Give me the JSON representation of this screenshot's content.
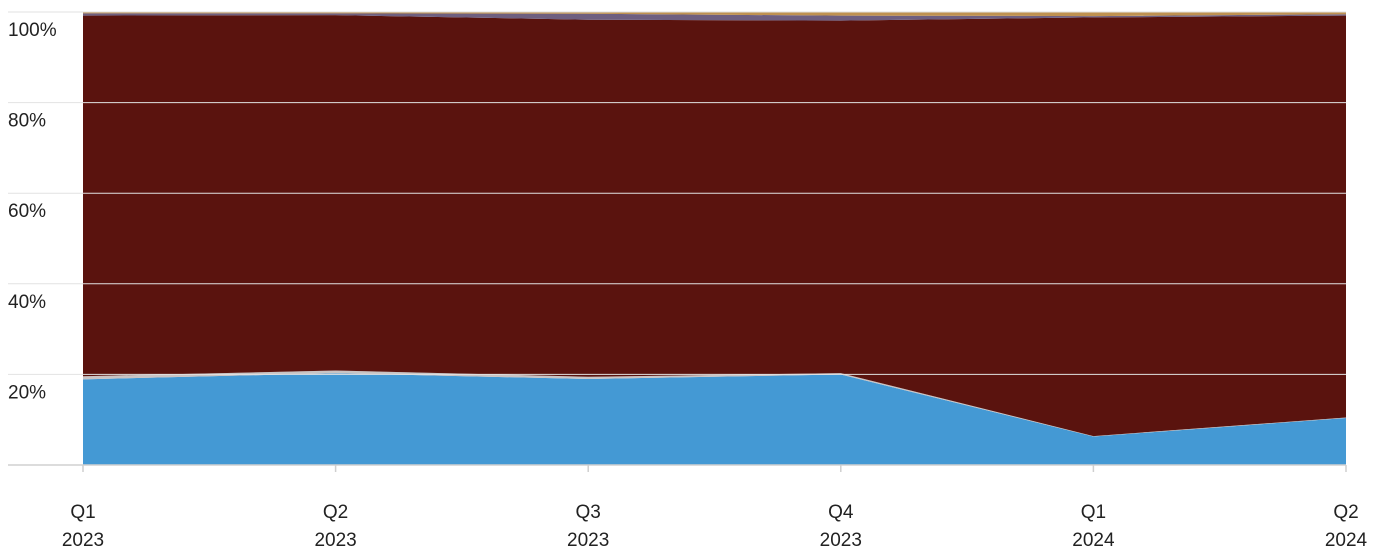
{
  "chart_data": {
    "type": "area",
    "stacked": true,
    "normalized": true,
    "x": [
      {
        "q": "Q1",
        "y": "2023"
      },
      {
        "q": "Q2",
        "y": "2023"
      },
      {
        "q": "Q3",
        "y": "2023"
      },
      {
        "q": "Q4",
        "y": "2023"
      },
      {
        "q": "Q1",
        "y": "2024"
      },
      {
        "q": "Q2",
        "y": "2024"
      }
    ],
    "series": [
      {
        "color": "#4499d4",
        "values": [
          19.0,
          20.3,
          19.0,
          20.0,
          6.3,
          10.4
        ]
      },
      {
        "color": "#c9c4c4",
        "values": [
          0.7,
          0.6,
          0.5,
          0.3,
          0.1,
          0.1
        ]
      },
      {
        "color": "#5a130e",
        "values": [
          80.0,
          78.6,
          78.9,
          77.9,
          92.6,
          88.9
        ]
      },
      {
        "color": "#6e5f80",
        "values": [
          0.5,
          0.4,
          1.3,
          1.1,
          0.3,
          0.3
        ]
      },
      {
        "color": "#bf9150",
        "values": [
          0.3,
          0.3,
          0.4,
          0.8,
          0.9,
          0.5
        ]
      }
    ],
    "ylim": [
      0,
      100
    ],
    "yticks": [
      {
        "value": 20,
        "label": "20%"
      },
      {
        "value": 40,
        "label": "40%"
      },
      {
        "value": 60,
        "label": "60%"
      },
      {
        "value": 80,
        "label": "80%"
      },
      {
        "value": 100,
        "label": "100%"
      }
    ],
    "grid": true,
    "title": "",
    "xlabel": "",
    "ylabel": ""
  }
}
